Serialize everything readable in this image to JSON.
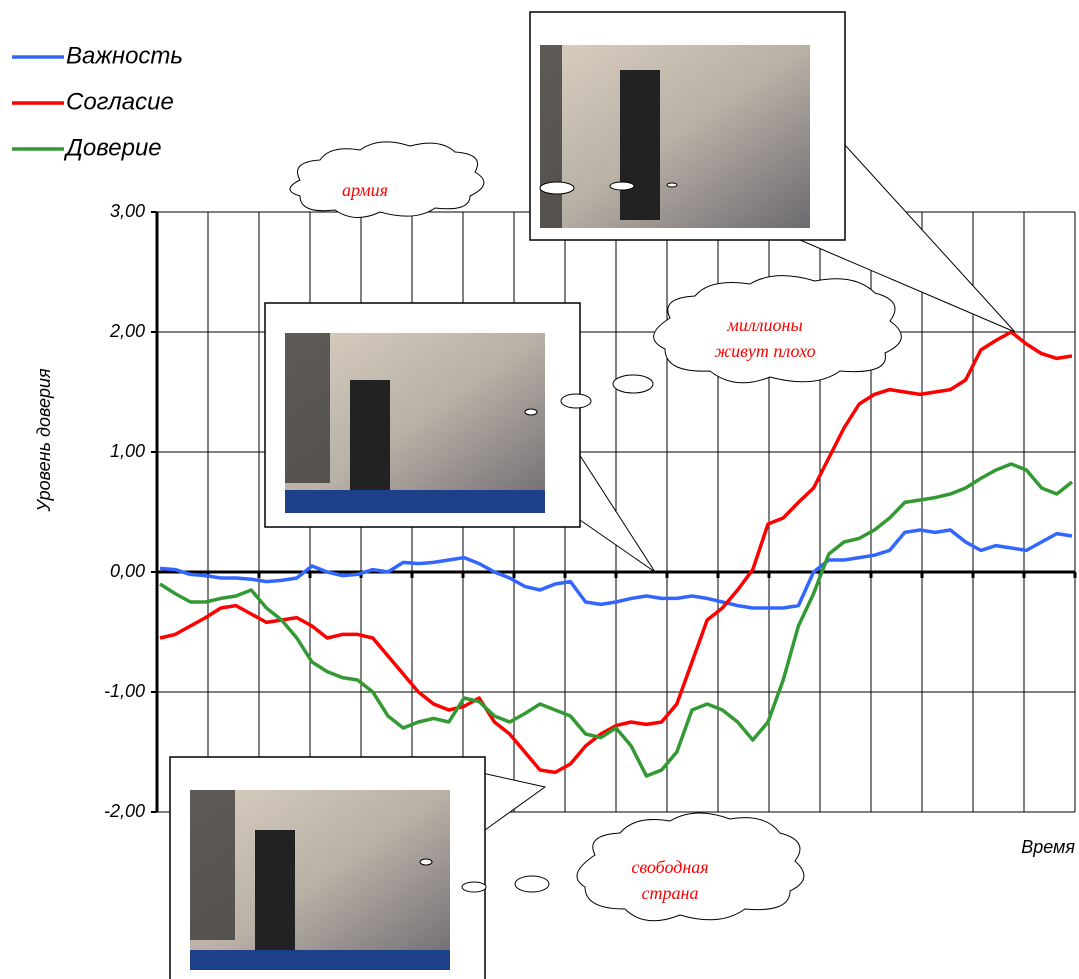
{
  "chart_data": {
    "type": "line",
    "series": [
      {
        "name": "Важность",
        "color": "#3366ff",
        "values": [
          0.03,
          0.02,
          -0.02,
          -0.03,
          -0.05,
          -0.05,
          -0.06,
          -0.08,
          -0.07,
          -0.05,
          0.05,
          0.0,
          -0.03,
          -0.02,
          0.02,
          0.0,
          0.08,
          0.07,
          0.08,
          0.1,
          0.12,
          0.07,
          0.0,
          -0.05,
          -0.12,
          -0.15,
          -0.1,
          -0.08,
          -0.25,
          -0.27,
          -0.25,
          -0.22,
          -0.2,
          -0.22,
          -0.22,
          -0.2,
          -0.22,
          -0.25,
          -0.28,
          -0.3,
          -0.3,
          -0.3,
          -0.28,
          0.0,
          0.1,
          0.1,
          0.12,
          0.14,
          0.18,
          0.33,
          0.35,
          0.33,
          0.35,
          0.25,
          0.18,
          0.22,
          0.2,
          0.18,
          0.25,
          0.32,
          0.3
        ]
      },
      {
        "name": "Согласие",
        "color": "#ff0000",
        "values": [
          -0.55,
          -0.52,
          -0.45,
          -0.38,
          -0.3,
          -0.28,
          -0.35,
          -0.42,
          -0.4,
          -0.38,
          -0.45,
          -0.55,
          -0.52,
          -0.52,
          -0.55,
          -0.7,
          -0.85,
          -1.0,
          -1.1,
          -1.15,
          -1.12,
          -1.05,
          -1.25,
          -1.35,
          -1.5,
          -1.65,
          -1.67,
          -1.6,
          -1.45,
          -1.35,
          -1.28,
          -1.25,
          -1.27,
          -1.25,
          -1.1,
          -0.75,
          -0.4,
          -0.3,
          -0.15,
          0.02,
          0.4,
          0.45,
          0.58,
          0.7,
          0.95,
          1.2,
          1.4,
          1.48,
          1.52,
          1.5,
          1.48,
          1.5,
          1.52,
          1.6,
          1.85,
          1.93,
          2.0,
          1.9,
          1.82,
          1.78,
          1.8
        ]
      },
      {
        "name": "Доверие",
        "color": "#339933",
        "values": [
          -0.1,
          -0.18,
          -0.25,
          -0.25,
          -0.22,
          -0.2,
          -0.15,
          -0.3,
          -0.4,
          -0.55,
          -0.75,
          -0.83,
          -0.88,
          -0.9,
          -1.0,
          -1.2,
          -1.3,
          -1.25,
          -1.22,
          -1.25,
          -1.05,
          -1.08,
          -1.2,
          -1.25,
          -1.18,
          -1.1,
          -1.15,
          -1.2,
          -1.35,
          -1.38,
          -1.3,
          -1.45,
          -1.7,
          -1.65,
          -1.5,
          -1.15,
          -1.1,
          -1.15,
          -1.25,
          -1.4,
          -1.25,
          -0.9,
          -0.45,
          -0.18,
          0.15,
          0.25,
          0.28,
          0.35,
          0.45,
          0.58,
          0.6,
          0.62,
          0.65,
          0.7,
          0.78,
          0.85,
          0.9,
          0.85,
          0.7,
          0.65,
          0.75
        ]
      }
    ],
    "ylim": [
      -2,
      3
    ],
    "yticks": [
      {
        "value": -2,
        "label": "-2,00"
      },
      {
        "value": -1,
        "label": "-1,00"
      },
      {
        "value": 0,
        "label": "0,00"
      },
      {
        "value": 1,
        "label": "1,00"
      },
      {
        "value": 2,
        "label": "2,00"
      },
      {
        "value": 3,
        "label": "3,00"
      }
    ],
    "ylabel": "Уровень доверия",
    "xlabel": "Время",
    "grid": true,
    "legend": "top-left",
    "annotations": [
      {
        "text": "армия"
      },
      {
        "text": "миллионы живут плохо"
      },
      {
        "text": "свободная страна"
      }
    ]
  }
}
